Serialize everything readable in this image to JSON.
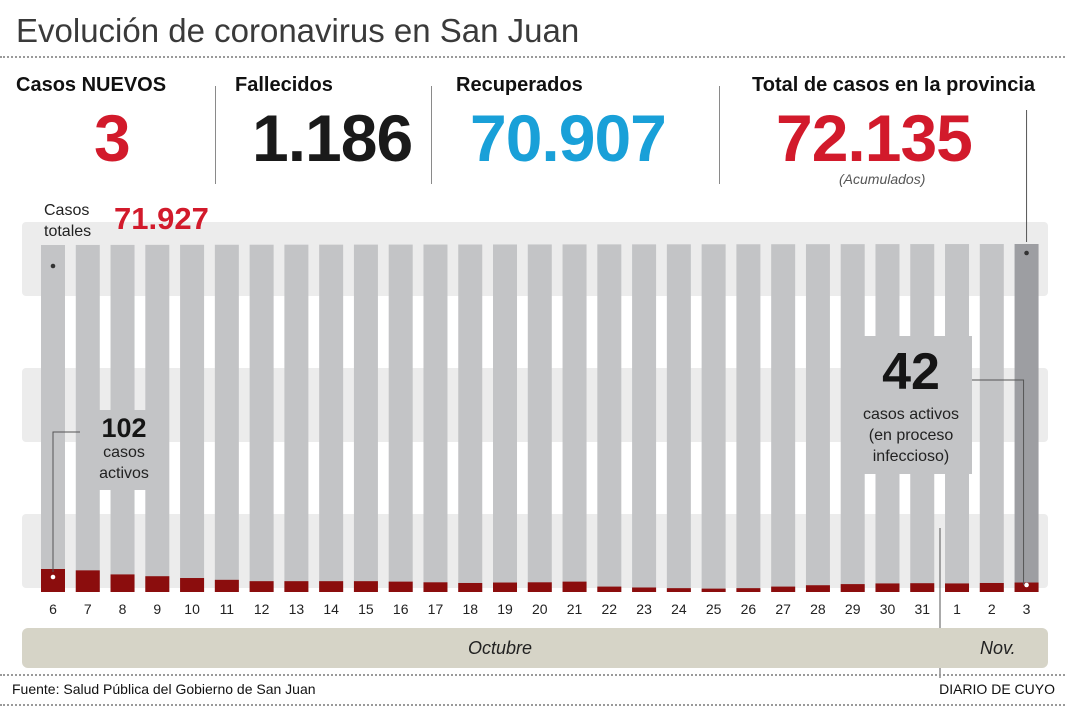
{
  "title": "Evolución de coronavirus en San Juan",
  "stats": [
    {
      "label": "Casos NUEVOS",
      "value": "3",
      "color": "#d21a2b"
    },
    {
      "label": "Fallecidos",
      "value": "1.186",
      "color": "#1a1a1a"
    },
    {
      "label": "Recuperados",
      "value": "70.907",
      "color": "#19a0d8"
    },
    {
      "label": "Total de casos en la provincia",
      "value": "72.135",
      "color": "#d21a2b",
      "note": "(Acumulados)"
    }
  ],
  "start_annotation": {
    "label_line1": "Casos",
    "label_line2": "totales",
    "value": "71.927",
    "active_number": "102",
    "active_line1": "casos",
    "active_line2": "activos"
  },
  "end_annotation": {
    "active_number": "42",
    "line1": "casos activos",
    "line2": "(en proceso",
    "line3": "infeccioso)"
  },
  "months": [
    {
      "name": "Octubre"
    },
    {
      "name": "Nov."
    }
  ],
  "source": "Fuente: Salud Pública del Gobierno de San Juan",
  "credit": "DIARIO DE CUYO",
  "colors": {
    "total": "#c3c4c6",
    "total_last": "#9d9ea2",
    "active": "#8b0d0d"
  },
  "chart_data": {
    "type": "bar",
    "categories": [
      "6",
      "7",
      "8",
      "9",
      "10",
      "11",
      "12",
      "13",
      "14",
      "15",
      "16",
      "17",
      "18",
      "19",
      "20",
      "21",
      "22",
      "23",
      "24",
      "25",
      "26",
      "27",
      "28",
      "29",
      "30",
      "31",
      "1",
      "2",
      "3"
    ],
    "series": [
      {
        "values": [
          71927,
          71937,
          71947,
          71957,
          71967,
          71977,
          71987,
          71995,
          72001,
          72009,
          72015,
          72021,
          72029,
          72035,
          72043,
          72051,
          72057,
          72063,
          72069,
          72075,
          72081,
          72089,
          72097,
          72103,
          72111,
          72117,
          72123,
          72129,
          72135
        ]
      },
      {
        "values": [
          102,
          96,
          78,
          70,
          62,
          54,
          48,
          48,
          48,
          48,
          46,
          43,
          40,
          42,
          43,
          46,
          24,
          20,
          17,
          15,
          17,
          24,
          30,
          35,
          38,
          39,
          38,
          40,
          42
        ]
      }
    ],
    "ylim": [
      0,
      72135
    ],
    "grid": false,
    "legend": "none"
  }
}
